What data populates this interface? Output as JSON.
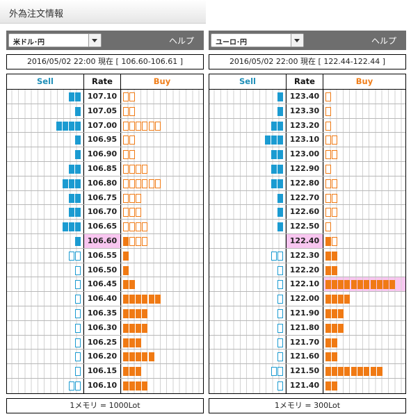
{
  "page": {
    "title": "外為注文情報"
  },
  "colors": {
    "sell": "#1b9bd1",
    "buy": "#f07a14",
    "highlight": "#f8c6f0",
    "header_bar": "#6e6e6e"
  },
  "panels": [
    {
      "pair": "米ドル･円",
      "help": "ヘルプ",
      "info": "2016/05/02  22:00 現在 [ 106.60-106.61 ]",
      "headers": {
        "sell": "Sell",
        "rate": "Rate",
        "buy": "Buy"
      },
      "footer": "1メモリ = 1000Lot",
      "rows": [
        {
          "rate": "107.10",
          "sell": 2,
          "sell_type": "fill",
          "buy": 2,
          "buy_type": "hollow"
        },
        {
          "rate": "107.05",
          "sell": 1,
          "sell_type": "fill",
          "buy": 2,
          "buy_type": "hollow"
        },
        {
          "rate": "107.00",
          "sell": 4,
          "sell_type": "fill",
          "buy": 6,
          "buy_type": "hollow"
        },
        {
          "rate": "106.95",
          "sell": 1,
          "sell_type": "fill",
          "buy": 2,
          "buy_type": "hollow"
        },
        {
          "rate": "106.90",
          "sell": 1,
          "sell_type": "fill",
          "buy": 2,
          "buy_type": "hollow"
        },
        {
          "rate": "106.85",
          "sell": 2,
          "sell_type": "fill",
          "buy": 4,
          "buy_type": "hollow"
        },
        {
          "rate": "106.80",
          "sell": 3,
          "sell_type": "fill",
          "buy": 6,
          "buy_type": "hollow"
        },
        {
          "rate": "106.75",
          "sell": 2,
          "sell_type": "fill",
          "buy": 3,
          "buy_type": "hollow"
        },
        {
          "rate": "106.70",
          "sell": 2,
          "sell_type": "fill",
          "buy": 3,
          "buy_type": "hollow"
        },
        {
          "rate": "106.65",
          "sell": 3,
          "sell_type": "fill",
          "buy": 4,
          "buy_type": "hollow"
        },
        {
          "rate": "106.60",
          "sell": 1,
          "sell_type": "fill",
          "buy": 4,
          "buy_type": "mixed",
          "highlight_rate": true
        },
        {
          "rate": "106.55",
          "sell": 2,
          "sell_type": "hollow",
          "buy": 1,
          "buy_type": "fill"
        },
        {
          "rate": "106.50",
          "sell": 1,
          "sell_type": "hollow",
          "buy": 1,
          "buy_type": "fill"
        },
        {
          "rate": "106.45",
          "sell": 1,
          "sell_type": "hollow",
          "buy": 2,
          "buy_type": "fill"
        },
        {
          "rate": "106.40",
          "sell": 1,
          "sell_type": "hollow",
          "buy": 6,
          "buy_type": "fill"
        },
        {
          "rate": "106.35",
          "sell": 1,
          "sell_type": "hollow",
          "buy": 4,
          "buy_type": "fill"
        },
        {
          "rate": "106.30",
          "sell": 1,
          "sell_type": "hollow",
          "buy": 4,
          "buy_type": "fill"
        },
        {
          "rate": "106.25",
          "sell": 1,
          "sell_type": "hollow",
          "buy": 3,
          "buy_type": "fill"
        },
        {
          "rate": "106.20",
          "sell": 1,
          "sell_type": "hollow",
          "buy": 5,
          "buy_type": "fill"
        },
        {
          "rate": "106.15",
          "sell": 1,
          "sell_type": "hollow",
          "buy": 3,
          "buy_type": "fill"
        },
        {
          "rate": "106.10",
          "sell": 2,
          "sell_type": "hollow",
          "buy": 4,
          "buy_type": "fill"
        }
      ]
    },
    {
      "pair": "ユーロ･円",
      "help": "ヘルプ",
      "info": "2016/05/02  22:00 現在 [ 122.44-122.44 ]",
      "headers": {
        "sell": "Sell",
        "rate": "Rate",
        "buy": "Buy"
      },
      "footer": "1メモリ = 300Lot",
      "rows": [
        {
          "rate": "123.40",
          "sell": 1,
          "sell_type": "fill",
          "buy": 1,
          "buy_type": "hollow"
        },
        {
          "rate": "123.30",
          "sell": 1,
          "sell_type": "fill",
          "buy": 1,
          "buy_type": "hollow"
        },
        {
          "rate": "123.20",
          "sell": 2,
          "sell_type": "fill",
          "buy": 1,
          "buy_type": "hollow"
        },
        {
          "rate": "123.10",
          "sell": 3,
          "sell_type": "fill",
          "buy": 2,
          "buy_type": "hollow"
        },
        {
          "rate": "123.00",
          "sell": 2,
          "sell_type": "fill",
          "buy": 2,
          "buy_type": "hollow"
        },
        {
          "rate": "122.90",
          "sell": 2,
          "sell_type": "fill",
          "buy": 1,
          "buy_type": "hollow"
        },
        {
          "rate": "122.80",
          "sell": 2,
          "sell_type": "fill",
          "buy": 2,
          "buy_type": "hollow"
        },
        {
          "rate": "122.70",
          "sell": 1,
          "sell_type": "fill",
          "buy": 2,
          "buy_type": "hollow"
        },
        {
          "rate": "122.60",
          "sell": 1,
          "sell_type": "fill",
          "buy": 2,
          "buy_type": "hollow"
        },
        {
          "rate": "122.50",
          "sell": 1,
          "sell_type": "fill",
          "buy": 1,
          "buy_type": "hollow"
        },
        {
          "rate": "122.40",
          "sell": 0,
          "sell_type": "fill",
          "buy": 2,
          "buy_type": "mixed",
          "highlight_rate": true
        },
        {
          "rate": "122.30",
          "sell": 2,
          "sell_type": "hollow",
          "buy": 2,
          "buy_type": "fill"
        },
        {
          "rate": "122.20",
          "sell": 1,
          "sell_type": "hollow",
          "buy": 2,
          "buy_type": "fill"
        },
        {
          "rate": "122.10",
          "sell": 1,
          "sell_type": "hollow",
          "buy": 11,
          "buy_type": "fill",
          "highlight_buy": true
        },
        {
          "rate": "122.00",
          "sell": 1,
          "sell_type": "hollow",
          "buy": 4,
          "buy_type": "fill"
        },
        {
          "rate": "121.90",
          "sell": 1,
          "sell_type": "hollow",
          "buy": 3,
          "buy_type": "fill"
        },
        {
          "rate": "121.80",
          "sell": 1,
          "sell_type": "hollow",
          "buy": 3,
          "buy_type": "fill"
        },
        {
          "rate": "121.70",
          "sell": 1,
          "sell_type": "hollow",
          "buy": 2,
          "buy_type": "fill"
        },
        {
          "rate": "121.60",
          "sell": 1,
          "sell_type": "hollow",
          "buy": 2,
          "buy_type": "fill"
        },
        {
          "rate": "121.50",
          "sell": 2,
          "sell_type": "hollow",
          "buy": 9,
          "buy_type": "fill"
        },
        {
          "rate": "121.40",
          "sell": 1,
          "sell_type": "hollow",
          "buy": 2,
          "buy_type": "fill"
        }
      ]
    }
  ]
}
